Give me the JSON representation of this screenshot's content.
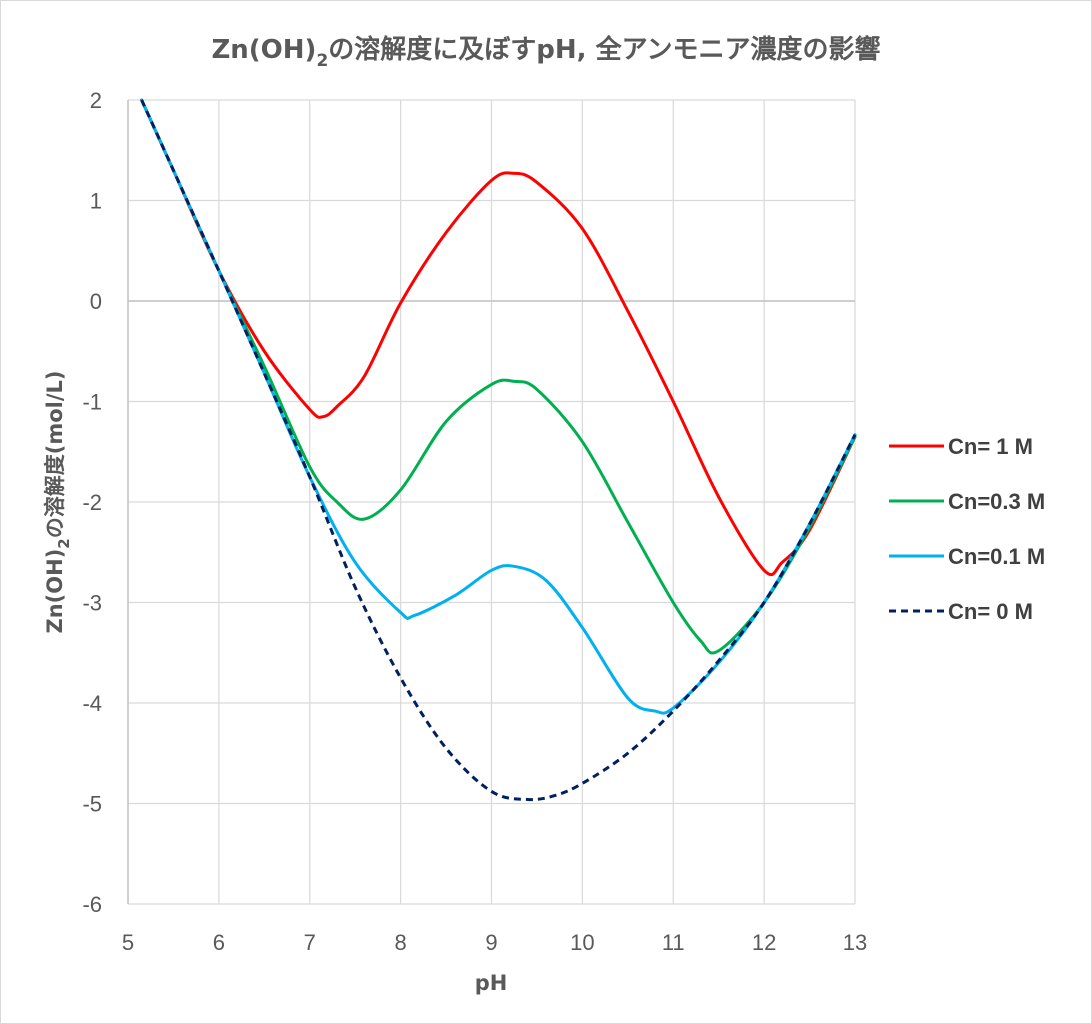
{
  "chart_data": {
    "type": "line",
    "title_main": "Zn(OH)",
    "title_sub": "2",
    "title_rest": "の溶解度に及ぼすpH, 全アンモニア濃度の影響",
    "xlabel": "pH",
    "ylabel_main": "Zn(OH)",
    "ylabel_sub": "2",
    "ylabel_rest": "の溶解度(mol/L)",
    "xlim": [
      5,
      13
    ],
    "ylim": [
      -6,
      2
    ],
    "xticks": [
      "5",
      "6",
      "7",
      "8",
      "9",
      "10",
      "11",
      "12",
      "13"
    ],
    "yticks": [
      "2",
      "1",
      "0",
      "-1",
      "-2",
      "-3",
      "-4",
      "-5",
      "-6"
    ],
    "legend_position": "right",
    "series": [
      {
        "name": "Cn= 1 M",
        "color": "#ff0000",
        "dash": "solid",
        "x": [
          5.15,
          5.5,
          6.0,
          6.5,
          7.0,
          7.15,
          7.3,
          7.6,
          8.0,
          8.5,
          9.0,
          9.25,
          9.5,
          10.0,
          10.5,
          11.0,
          11.5,
          12.0,
          12.2,
          12.5,
          13.0
        ],
        "y": [
          2.0,
          1.3,
          0.3,
          -0.5,
          -1.08,
          -1.15,
          -1.05,
          -0.75,
          -0.02,
          0.68,
          1.2,
          1.27,
          1.18,
          0.72,
          -0.1,
          -1.0,
          -1.95,
          -2.68,
          -2.6,
          -2.28,
          -1.35
        ]
      },
      {
        "name": "Cn=0.3 M",
        "color": "#00b050",
        "dash": "solid",
        "x": [
          5.15,
          5.5,
          6.0,
          6.5,
          7.0,
          7.3,
          7.6,
          8.0,
          8.5,
          9.0,
          9.25,
          9.5,
          10.0,
          10.5,
          11.0,
          11.3,
          11.5,
          12.0,
          12.5,
          13.0
        ],
        "y": [
          2.0,
          1.3,
          0.3,
          -0.65,
          -1.65,
          -2.0,
          -2.17,
          -1.88,
          -1.2,
          -0.83,
          -0.8,
          -0.88,
          -1.4,
          -2.2,
          -3.0,
          -3.38,
          -3.48,
          -3.0,
          -2.25,
          -1.35
        ]
      },
      {
        "name": "Cn=0.1 M",
        "color": "#00b0f0",
        "dash": "solid",
        "x": [
          5.15,
          5.5,
          6.0,
          6.5,
          7.0,
          7.5,
          8.0,
          8.15,
          8.6,
          9.0,
          9.25,
          9.6,
          10.0,
          10.5,
          10.8,
          11.0,
          11.5,
          12.0,
          12.5,
          13.0
        ],
        "y": [
          2.0,
          1.3,
          0.3,
          -0.72,
          -1.75,
          -2.6,
          -3.1,
          -3.13,
          -2.93,
          -2.68,
          -2.64,
          -2.78,
          -3.25,
          -3.95,
          -4.08,
          -4.05,
          -3.6,
          -3.0,
          -2.22,
          -1.33
        ]
      },
      {
        "name": "Cn= 0 M",
        "color": "#002060",
        "dash": "dashed",
        "x": [
          5.15,
          5.5,
          6.0,
          6.5,
          7.0,
          7.5,
          8.0,
          8.5,
          9.0,
          9.4,
          9.7,
          10.0,
          10.5,
          11.0,
          11.5,
          12.0,
          12.5,
          13.0
        ],
        "y": [
          2.0,
          1.3,
          0.3,
          -0.72,
          -1.75,
          -2.85,
          -3.75,
          -4.45,
          -4.88,
          -4.96,
          -4.92,
          -4.8,
          -4.5,
          -4.08,
          -3.58,
          -3.0,
          -2.22,
          -1.33
        ]
      }
    ]
  }
}
